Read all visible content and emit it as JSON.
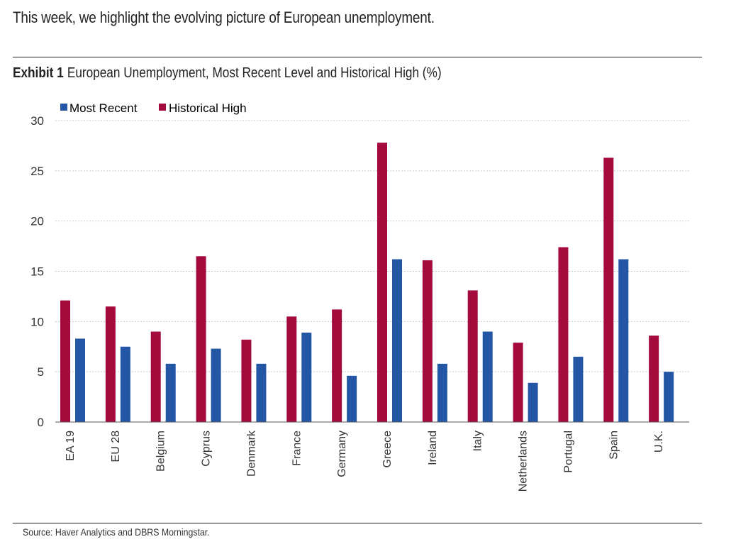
{
  "intro": "This week, we highlight the evolving picture of European unemployment.",
  "exhibit": {
    "label": "Exhibit 1",
    "title": "European Unemployment, Most Recent Level and Historical High (%)"
  },
  "source": "Source: Haver Analytics and DBRS Morningstar.",
  "colors": {
    "recent": "#2456a6",
    "high": "#a50a3c",
    "grid": "#c8c8c8",
    "axis": "#555555"
  },
  "chart_data": {
    "type": "bar",
    "title": "European Unemployment, Most Recent Level and Historical High (%)",
    "xlabel": "",
    "ylabel": "",
    "ylim": [
      0,
      30
    ],
    "yticks": [
      0,
      5,
      10,
      15,
      20,
      25,
      30
    ],
    "legend_position": "top-left",
    "categories": [
      "EA 19",
      "EU 28",
      "Belgium",
      "Cyprus",
      "Denmark",
      "France",
      "Germany",
      "Greece",
      "Ireland",
      "Italy",
      "Netherlands",
      "Portugal",
      "Spain",
      "U.K."
    ],
    "series": [
      {
        "name": "Most Recent",
        "color": "#2456a6",
        "values": [
          8.3,
          7.5,
          5.8,
          7.3,
          5.8,
          8.9,
          4.6,
          16.2,
          5.8,
          9.0,
          3.9,
          6.5,
          16.2,
          5.0
        ]
      },
      {
        "name": "Historical High",
        "color": "#a50a3c",
        "values": [
          12.1,
          11.5,
          9.0,
          16.5,
          8.2,
          10.5,
          11.2,
          27.8,
          16.1,
          13.1,
          7.9,
          17.4,
          26.3,
          8.6
        ]
      }
    ]
  }
}
